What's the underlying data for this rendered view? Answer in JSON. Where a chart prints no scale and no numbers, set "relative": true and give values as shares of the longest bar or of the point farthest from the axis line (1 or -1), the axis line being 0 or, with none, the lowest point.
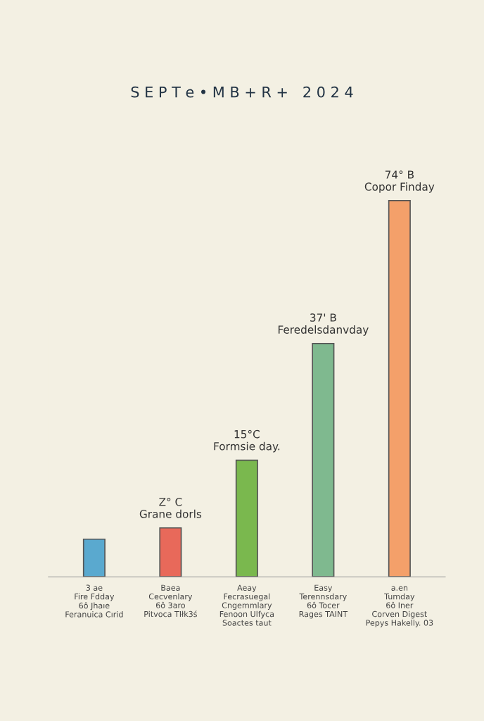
{
  "chart_data": {
    "type": "bar",
    "relative": true,
    "title": "S E P T e • M B + R +   2 0 2 4",
    "categories": [
      "3 ae\nFire Fdday\n6ô Jhaıe\nFeranuica Cırid",
      "Baea\nCecvenlary\n6ô 3aro\nPitvoca TIłk3ś",
      "Aeay\nFecrasuegal\nCngemmlary\nFenoon Ulfyca\nSoactes taut",
      "Easy\nTerennsdary\n6ô Tocer\nRages TAINT",
      "a.en\nTumday\n6ô Iner\nCorven Digest\nPepys Hakelly. 03"
    ],
    "values": [
      0.1,
      0.13,
      0.31,
      0.62,
      1
    ],
    "colors": [
      "#5aa9cf",
      "#e8695a",
      "#7ab84e",
      "#7fb98f",
      "#f4a06a"
    ],
    "annotations": [
      {
        "text": "Z° C\nGrane dorls",
        "x": "Baea\nCecvenlary\n6ô 3aro\nPitvoca TIłk3ś",
        "y": 0.13
      },
      {
        "text": "15°C\nFormsie day.",
        "x": "Aeay\nFecrasuegal\nCngemmlary\nFenoon Ulfyca\nSoactes taut",
        "y": 0.31
      },
      {
        "text": "37' B\nFeredelsdanvday",
        "x": "Easy\nTerennsdary\n6ô Tocer\nRages TAINT",
        "y": 0.62
      },
      {
        "text": "74° B\nCopor Finday",
        "x": "a.en\nTumday\n6ô Iner\nCorven Digest\nPepys Hakelly. 03",
        "y": 1
      }
    ],
    "grid": false,
    "legend": false
  }
}
